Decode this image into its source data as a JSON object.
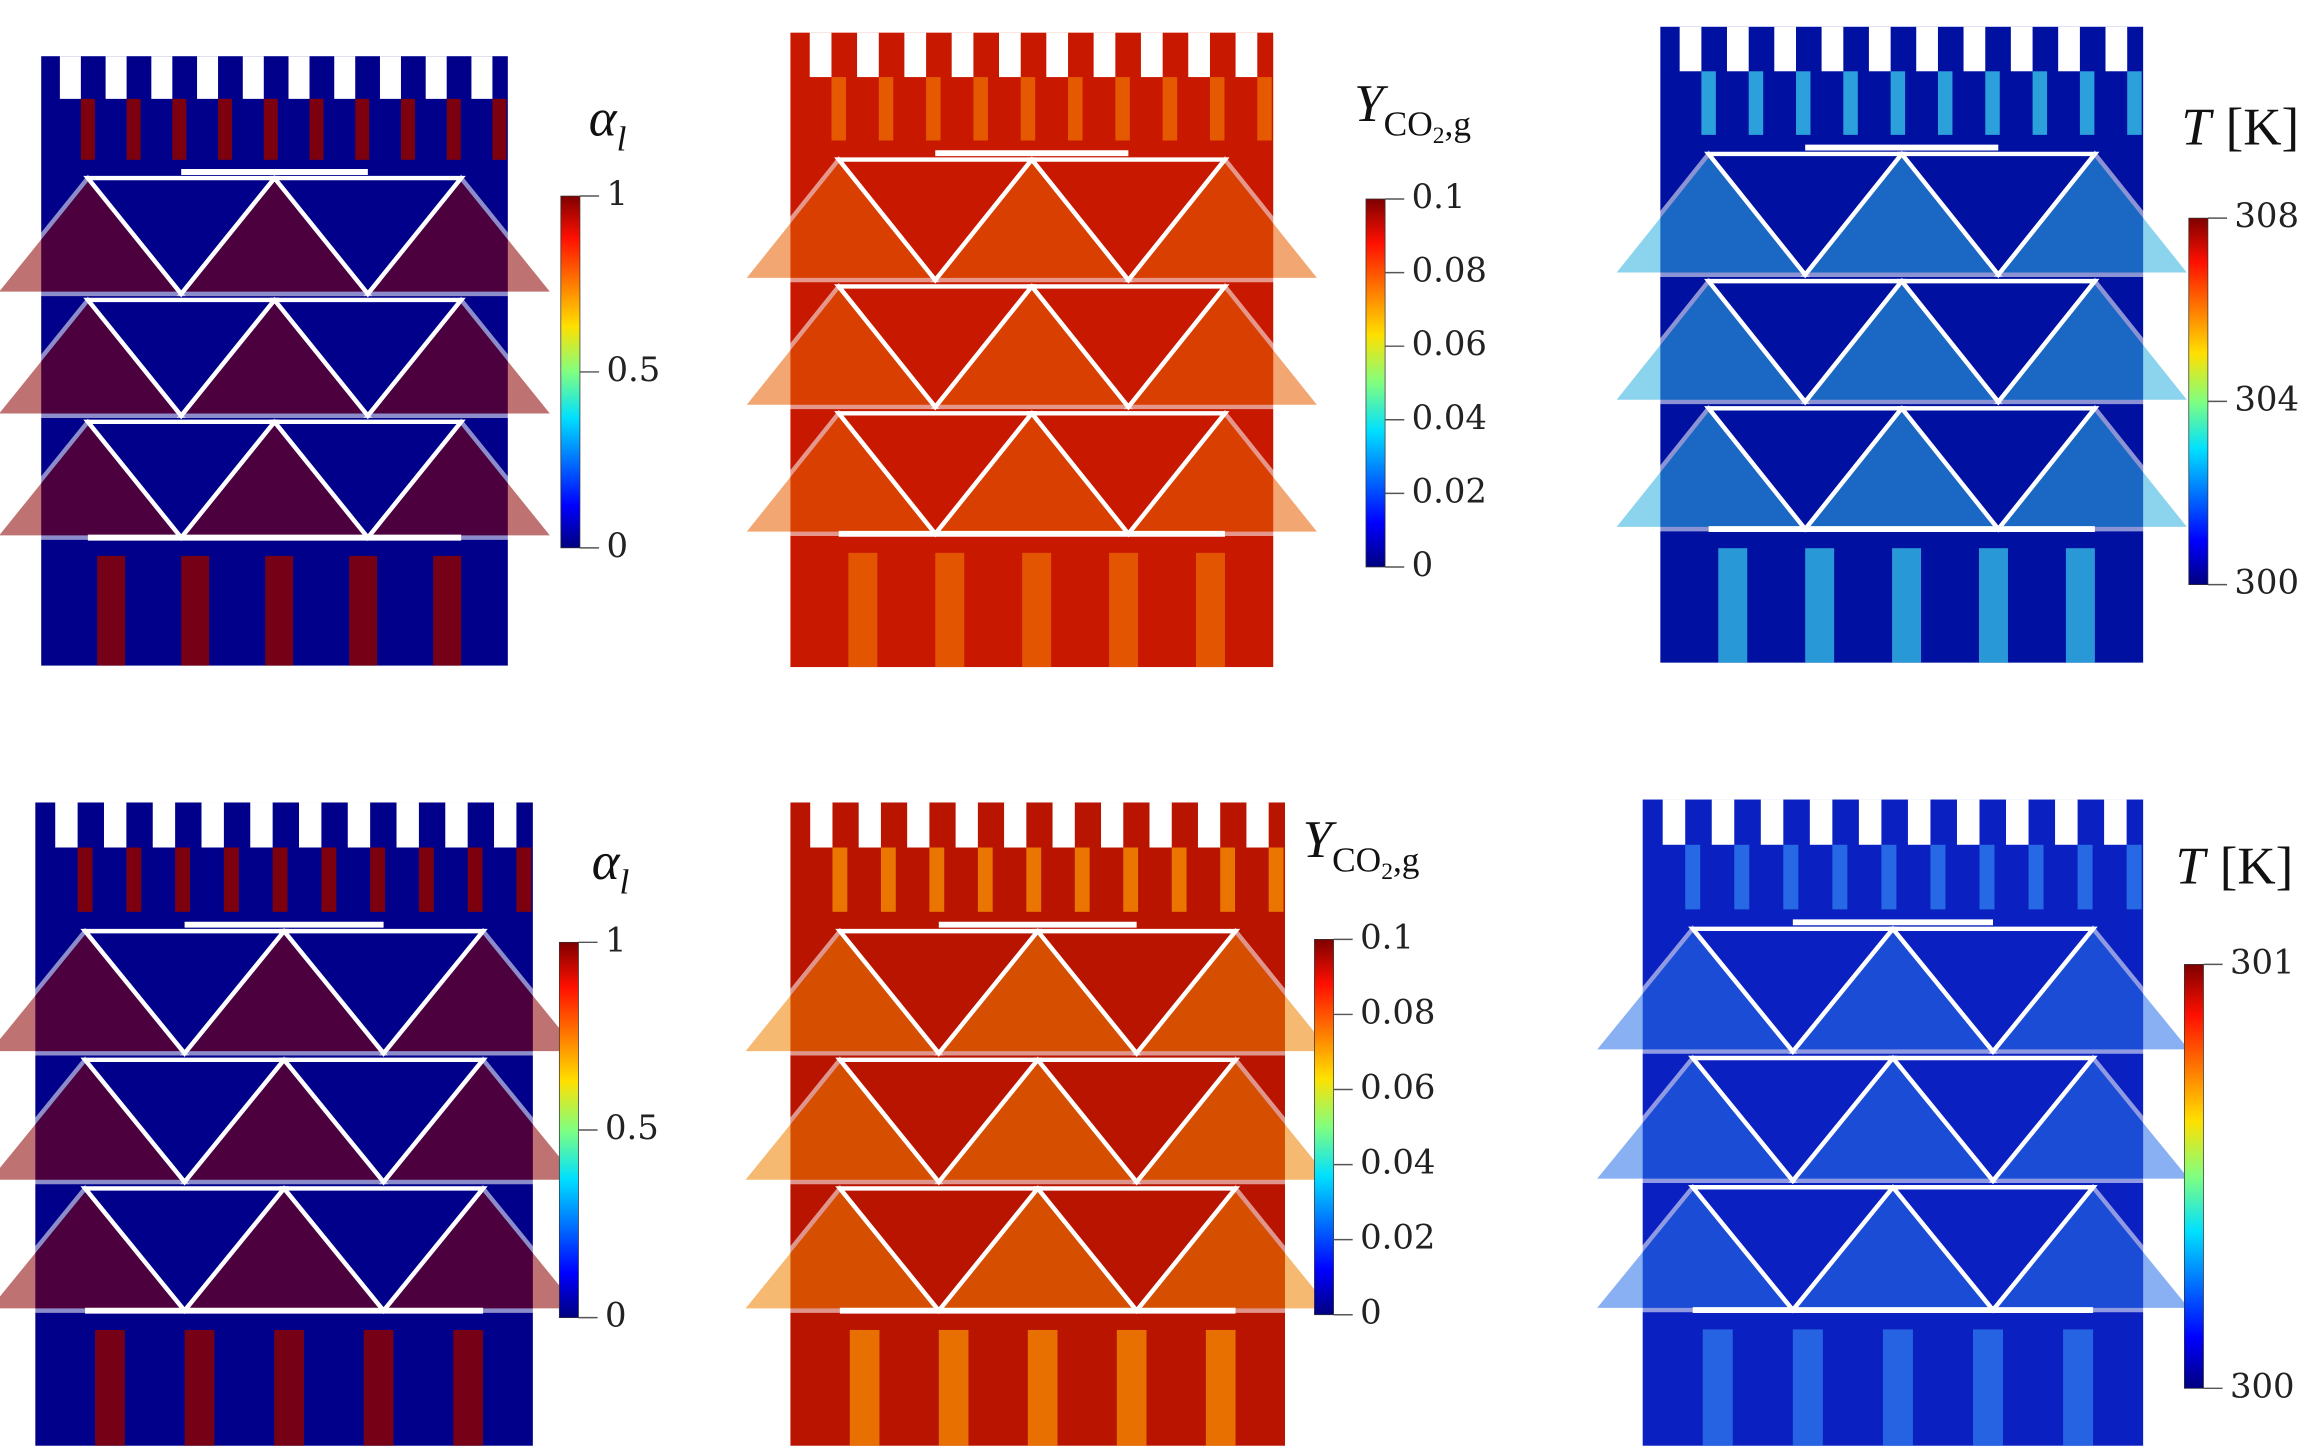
{
  "panels": [
    {
      "colorbar": {
        "symbol": "α",
        "subscript": "l",
        "lim": [
          0,
          1
        ],
        "ticks": [
          0,
          0.5,
          1
        ]
      }
    },
    {
      "colorbar": {
        "symbol": "Y",
        "subscript": "CO",
        "subscript_index": "2",
        "subscript_tail": ",g",
        "lim": [
          0,
          0.1
        ],
        "ticks": [
          0,
          0.02,
          0.04,
          0.06,
          0.08,
          0.1
        ]
      }
    },
    {
      "colorbar": {
        "symbol": "T",
        "unit": "[K]",
        "lim": [
          300,
          308
        ],
        "ticks": [
          300,
          304,
          308
        ]
      }
    },
    {
      "colorbar": {
        "symbol": "α",
        "subscript": "l",
        "lim": [
          0,
          1
        ],
        "ticks": [
          0,
          0.5,
          1
        ]
      }
    },
    {
      "colorbar": {
        "symbol": "Y",
        "subscript": "CO",
        "subscript_index": "2",
        "subscript_tail": ",g",
        "lim": [
          0,
          0.1
        ],
        "ticks": [
          0,
          0.02,
          0.04,
          0.06,
          0.08,
          0.1
        ]
      }
    },
    {
      "colorbar": {
        "symbol": "T",
        "unit": "[K]",
        "lim": [
          300,
          301
        ],
        "ticks": [
          300,
          301
        ]
      }
    }
  ]
}
